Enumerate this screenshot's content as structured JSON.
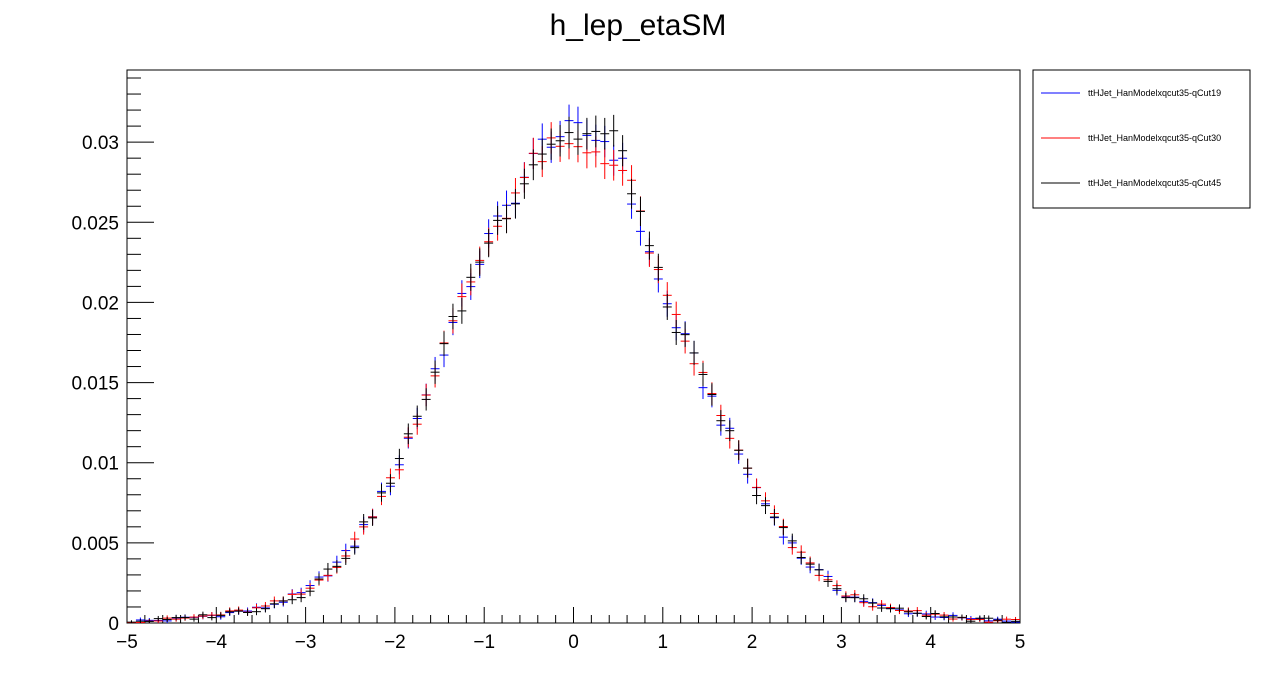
{
  "chart_data": {
    "type": "scatter",
    "title": "h_lep_etaSM",
    "xlabel": "",
    "ylabel": "",
    "xlim": [
      -5,
      5
    ],
    "ylim": [
      0,
      0.0345
    ],
    "grid": false,
    "legend": "top-right, outside plot",
    "x_ticks": [
      {
        "value": -5,
        "label": "−5"
      },
      {
        "value": -4,
        "label": "−4"
      },
      {
        "value": -3,
        "label": "−3"
      },
      {
        "value": -2,
        "label": "−2"
      },
      {
        "value": -1,
        "label": "−1"
      },
      {
        "value": 0,
        "label": "0"
      },
      {
        "value": 1,
        "label": "1"
      },
      {
        "value": 2,
        "label": "2"
      },
      {
        "value": 3,
        "label": "3"
      },
      {
        "value": 4,
        "label": "4"
      },
      {
        "value": 5,
        "label": "5"
      }
    ],
    "y_ticks": [
      {
        "value": 0,
        "label": "0"
      },
      {
        "value": 0.005,
        "label": "0.005"
      },
      {
        "value": 0.01,
        "label": "0.01"
      },
      {
        "value": 0.015,
        "label": "0.015"
      },
      {
        "value": 0.02,
        "label": "0.02"
      },
      {
        "value": 0.025,
        "label": "0.025"
      },
      {
        "value": 0.03,
        "label": "0.03"
      }
    ],
    "bins": 100,
    "series": [
      {
        "name": "ttHJet_HanModelxqcut35-qCut19",
        "color": "#0000ff",
        "anchor_x": [
          -5,
          -4.5,
          -4,
          -3.5,
          -3,
          -2.5,
          -2,
          -1.5,
          -1,
          -0.5,
          -0.3,
          0,
          0.3,
          0.5,
          0.7,
          1,
          1.5,
          2,
          2.5,
          3,
          3.5,
          4,
          4.5,
          5
        ],
        "anchor_y": [
          0.0001,
          0.0002,
          0.0005,
          0.0009,
          0.0019,
          0.0045,
          0.0093,
          0.0165,
          0.0234,
          0.0283,
          0.0303,
          0.0306,
          0.0303,
          0.0293,
          0.0255,
          0.0205,
          0.0145,
          0.0088,
          0.0044,
          0.0019,
          0.0009,
          0.0005,
          0.0002,
          0.0001
        ],
        "error_scale": 0.0009
      },
      {
        "name": "ttHJet_HanModelxqcut35-qCut30",
        "color": "#ff0000",
        "anchor_x": [
          -5,
          -4.5,
          -4,
          -3.5,
          -3,
          -2.5,
          -2,
          -1.5,
          -1,
          -0.5,
          -0.3,
          0,
          0.3,
          0.5,
          0.7,
          1,
          1.5,
          2,
          2.5,
          3,
          3.5,
          4,
          4.5,
          5
        ],
        "anchor_y": [
          0.0001,
          0.0002,
          0.0005,
          0.0009,
          0.0019,
          0.0045,
          0.0093,
          0.0165,
          0.0234,
          0.0283,
          0.0295,
          0.0295,
          0.0295,
          0.0285,
          0.0265,
          0.0205,
          0.0147,
          0.0088,
          0.0044,
          0.0019,
          0.0009,
          0.0005,
          0.0002,
          0.0001
        ],
        "error_scale": 0.0009
      },
      {
        "name": "ttHJet_HanModelxqcut35-qCut45",
        "color": "#000000",
        "anchor_x": [
          -5,
          -4.5,
          -4,
          -3.5,
          -3,
          -2.5,
          -2,
          -1.5,
          -1,
          -0.5,
          -0.3,
          0,
          0.3,
          0.5,
          0.7,
          1,
          1.5,
          2,
          2.5,
          3,
          3.5,
          4,
          4.5,
          5
        ],
        "anchor_y": [
          0.0001,
          0.0002,
          0.0005,
          0.0009,
          0.0019,
          0.0045,
          0.0093,
          0.0165,
          0.0234,
          0.0283,
          0.03,
          0.0305,
          0.0305,
          0.03,
          0.0265,
          0.0205,
          0.0145,
          0.0088,
          0.0044,
          0.0019,
          0.0009,
          0.0005,
          0.0002,
          0.0001
        ],
        "error_scale": 0.0009
      }
    ]
  }
}
